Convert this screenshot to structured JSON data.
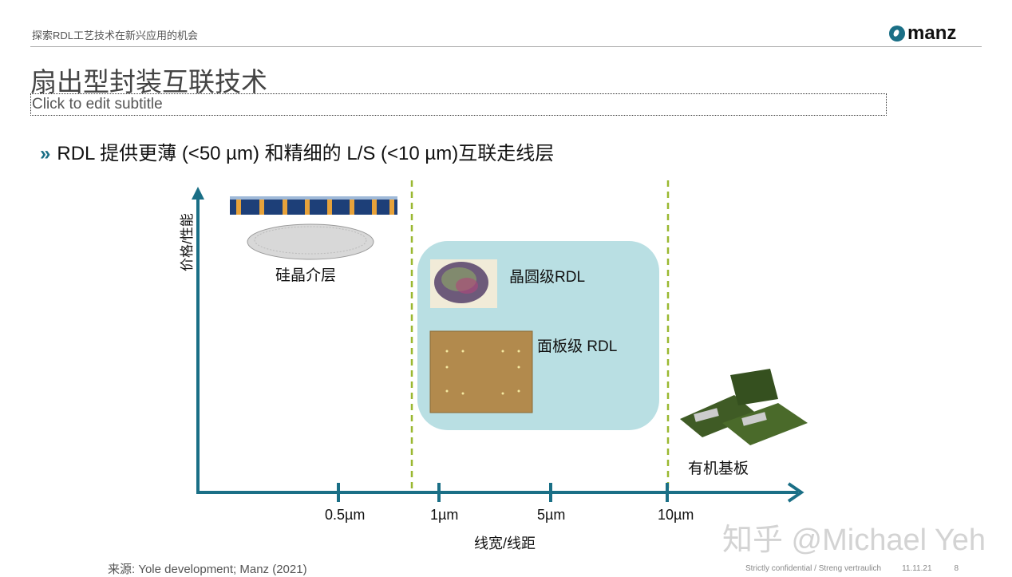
{
  "header": {
    "deck_title": "探索RDL工艺技术在新兴应用的机会",
    "logo_text": "manz"
  },
  "slide": {
    "title": "扇出型封装互联技术",
    "subtitle_placeholder": "Click to edit subtitle",
    "bullet": "RDL 提供更薄 (<50 µm) 和精细的 L/S (<10 µm)互联走线层"
  },
  "diagram": {
    "y_axis_label": "价格/性能",
    "x_axis_label": "线宽/线距",
    "x_ticks": [
      "0.5µm",
      "1µm",
      "5µm",
      "10µm"
    ],
    "items": {
      "interposer": "硅晶介层",
      "wafer_rdl": "晶圆级RDL",
      "panel_rdl": "面板级 RDL",
      "organic": "有机基板"
    },
    "colors": {
      "axis": "#1a6f86",
      "divider": "#9ab830",
      "highlight": "#b9dfe3"
    }
  },
  "footer": {
    "source": "来源: Yole development; Manz (2021)",
    "confidential": "Strictly confidential / Streng vertraulich",
    "date": "11.11.21",
    "page": "8"
  },
  "watermark": "知乎 @Michael Yeh"
}
